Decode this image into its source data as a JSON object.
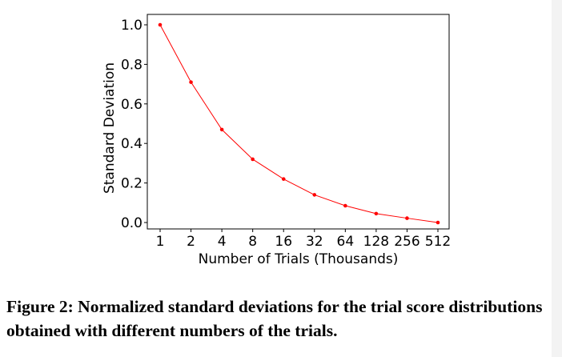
{
  "chart_data": {
    "type": "line",
    "x": [
      1,
      2,
      4,
      8,
      16,
      32,
      64,
      128,
      256,
      512
    ],
    "x_tick_labels": [
      "1",
      "2",
      "4",
      "8",
      "16",
      "32",
      "64",
      "128",
      "256",
      "512"
    ],
    "x_scale": "log2",
    "series": [
      {
        "values": [
          1.0,
          0.71,
          0.47,
          0.32,
          0.22,
          0.14,
          0.085,
          0.045,
          0.022,
          0.0
        ],
        "color": "#ff0000"
      }
    ],
    "xlabel": "Number of Trials (Thousands)",
    "ylabel": "Standard Deviation",
    "ylim": [
      0.0,
      1.0
    ],
    "y_ticks": [
      0.0,
      0.2,
      0.4,
      0.6,
      0.8,
      1.0
    ],
    "y_tick_labels": [
      "0.0",
      "0.2",
      "0.4",
      "0.6",
      "0.8",
      "1.0"
    ],
    "grid": false
  },
  "caption": "Figure 2: Normalized standard deviations for the trial score distributions obtained with different numbers of the trials.",
  "colors": {
    "line": "#ff0000",
    "axes": "#000000",
    "background": "#ffffff"
  }
}
